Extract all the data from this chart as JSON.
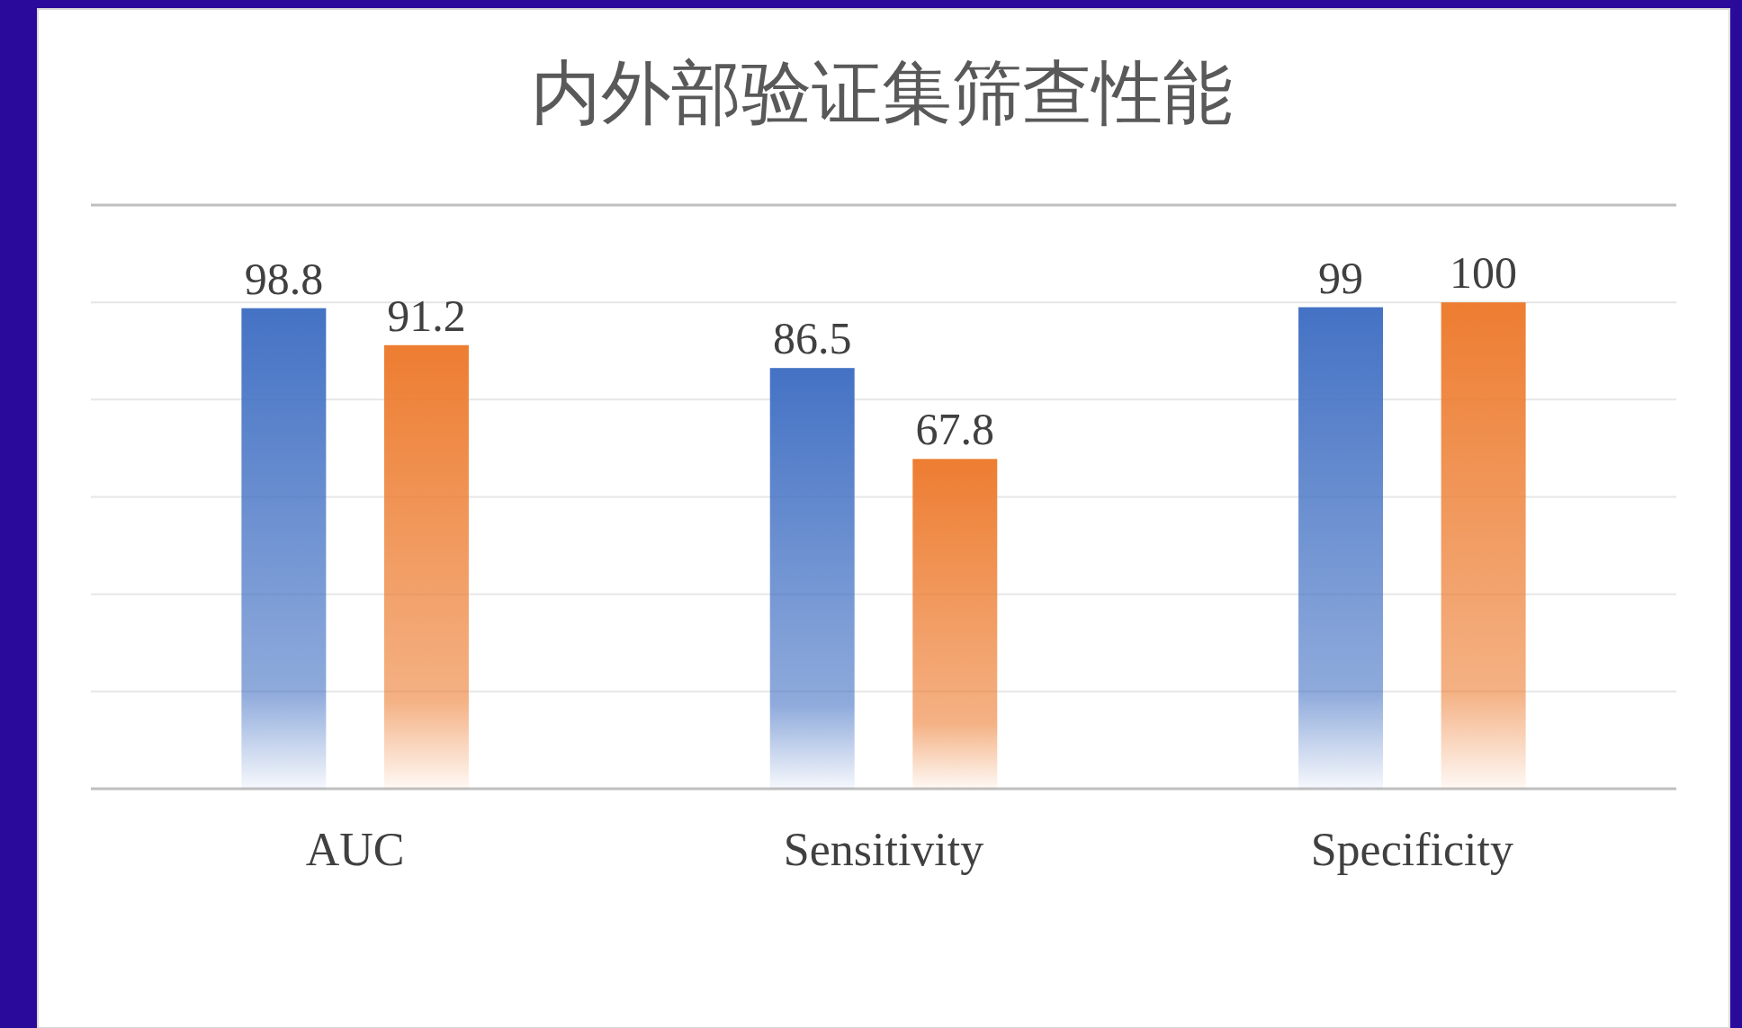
{
  "chart_data": {
    "type": "bar",
    "title": "内外部验证集筛查性能",
    "categories": [
      "AUC",
      "Sensitivity",
      "Specificity"
    ],
    "series": [
      {
        "color": "#4472c4",
        "values": [
          98.8,
          86.5,
          99
        ]
      },
      {
        "color": "#ed7d31",
        "values": [
          91.2,
          67.8,
          100
        ]
      }
    ],
    "ylim": [
      0,
      120
    ],
    "yticks": [
      {
        "value": 0,
        "label": null
      },
      {
        "value": 20,
        "label": null
      },
      {
        "value": 40,
        "label": null
      },
      {
        "value": 60,
        "label": null
      },
      {
        "value": 80,
        "label": null
      },
      {
        "value": 100,
        "label": null
      },
      {
        "value": 120,
        "label": null
      }
    ],
    "tick_labels": "x",
    "grid": "y",
    "data_labels": true
  }
}
